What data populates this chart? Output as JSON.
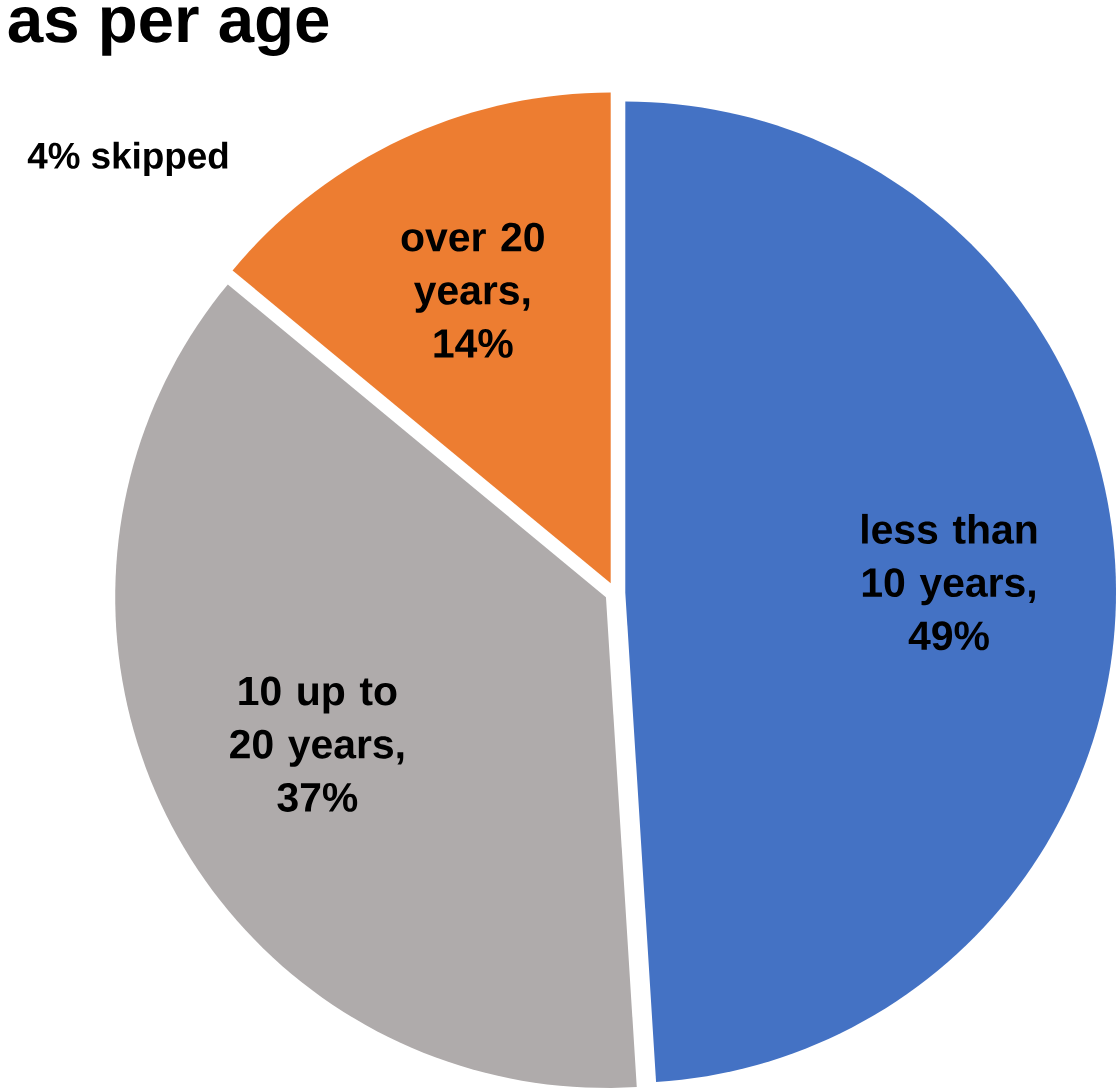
{
  "chart_data": {
    "type": "pie",
    "title": "as per age",
    "categories": [
      "less than 10 years, 49%",
      "10 up to 20 years, 37%",
      "over 20 years, 14%"
    ],
    "values": [
      49,
      37,
      14
    ],
    "colors": [
      "#4472c4",
      "#afabab",
      "#ed7d31"
    ],
    "annotations": [
      "4% skipped"
    ]
  }
}
